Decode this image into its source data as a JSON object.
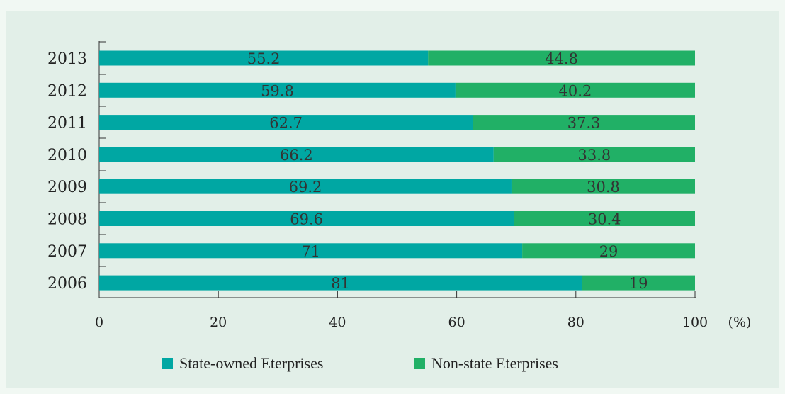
{
  "chart_data": {
    "type": "bar",
    "orientation": "horizontal",
    "stacked": true,
    "title": "",
    "xlabel": "",
    "ylabel": "",
    "x_unit": "(%)",
    "xlim": [
      0,
      100
    ],
    "x_ticks": [
      "0",
      "20",
      "40",
      "60",
      "80",
      "100"
    ],
    "categories": [
      "2013",
      "2012",
      "2011",
      "2010",
      "2009",
      "2008",
      "2007",
      "2006"
    ],
    "series": [
      {
        "name": "State-owned Eterprises",
        "color": "#00a7a3",
        "values": [
          55.2,
          59.8,
          62.7,
          66.2,
          69.2,
          69.6,
          71,
          81
        ],
        "labels": [
          "55.2",
          "59.8",
          "62.7",
          "66.2",
          "69.2",
          "69.6",
          "71",
          "81"
        ]
      },
      {
        "name": "Non-state Eterprises",
        "color": "#21b066",
        "values": [
          44.8,
          40.2,
          37.3,
          33.8,
          30.8,
          30.4,
          29,
          19
        ],
        "labels": [
          "44.8",
          "40.2",
          "37.3",
          "33.8",
          "30.8",
          "30.4",
          "29",
          "19"
        ]
      }
    ],
    "grid": false,
    "legend_position": "bottom"
  }
}
